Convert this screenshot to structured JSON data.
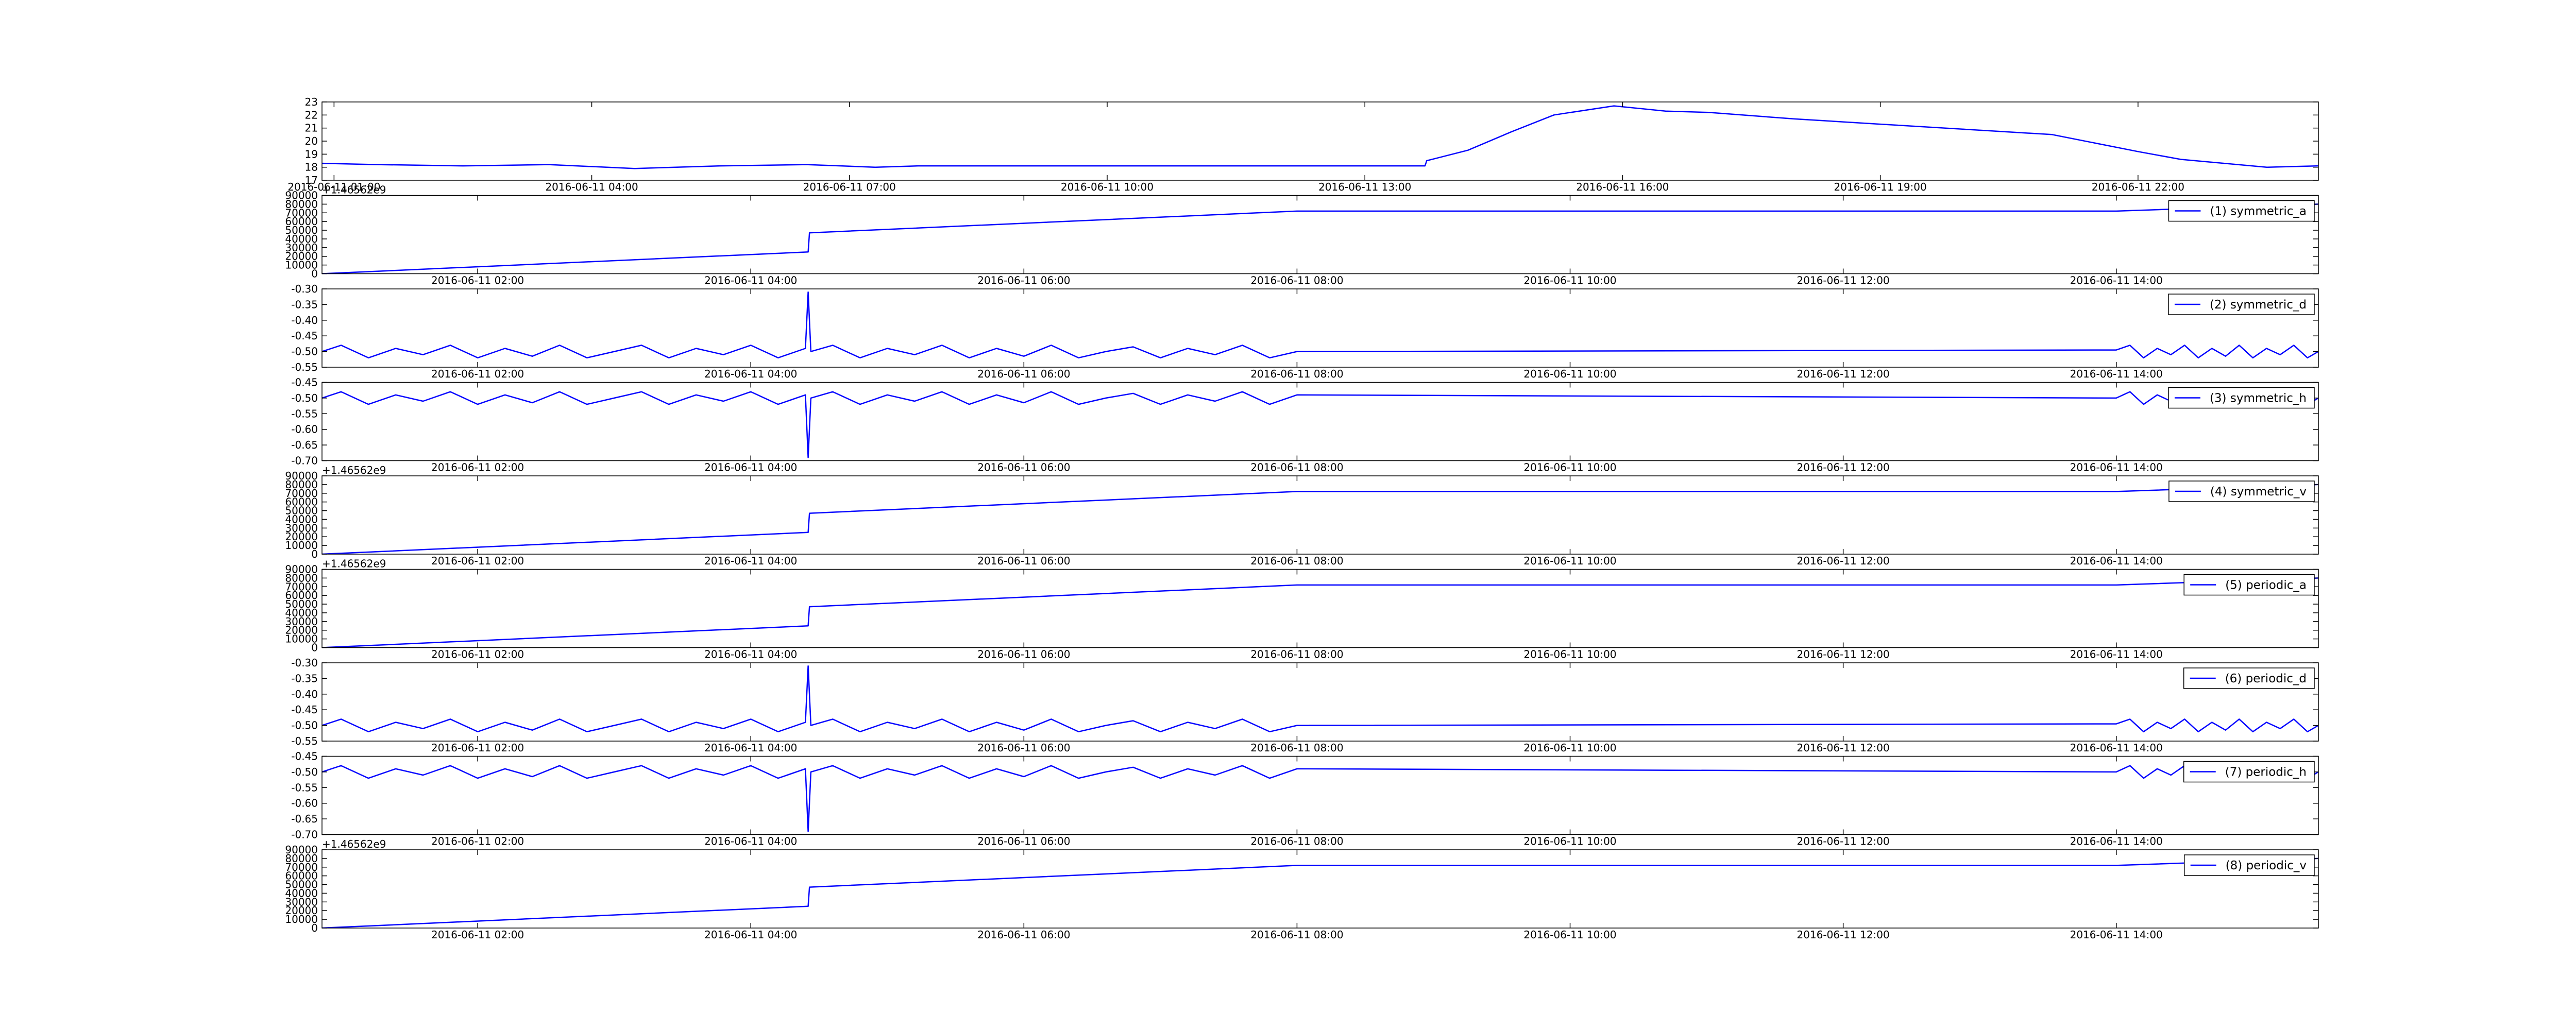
{
  "chart_data": [
    {
      "type": "line",
      "x": [
        0.86,
        1.5,
        2.5,
        3.5,
        4.5,
        5.5,
        6.5,
        7.3,
        7.8,
        13.7,
        13.72,
        14.2,
        14.7,
        15.2,
        15.9,
        16.5,
        17.0,
        18.0,
        19.0,
        20.0,
        21.0,
        22.0,
        22.5,
        23.0,
        23.5,
        24.1
      ],
      "series": [
        {
          "color": "#0000ff",
          "values": [
            18.3,
            18.2,
            18.1,
            18.2,
            17.9,
            18.1,
            18.2,
            18.0,
            18.1,
            18.1,
            18.5,
            19.3,
            20.7,
            22.0,
            22.7,
            22.3,
            22.2,
            21.7,
            21.3,
            20.9,
            20.5,
            19.2,
            18.6,
            18.3,
            18.0,
            18.1
          ]
        }
      ],
      "xlim": [
        0.86,
        24.1
      ],
      "ylim": [
        17,
        23
      ],
      "yticks": [
        17,
        18,
        19,
        20,
        21,
        22,
        23
      ],
      "xticks": [
        {
          "value": 1,
          "label": "2016-06-11 01:00"
        },
        {
          "value": 4,
          "label": "2016-06-11 04:00"
        },
        {
          "value": 7,
          "label": "2016-06-11 07:00"
        },
        {
          "value": 10,
          "label": "2016-06-11 10:00"
        },
        {
          "value": 13,
          "label": "2016-06-11 13:00"
        },
        {
          "value": 16,
          "label": "2016-06-11 16:00"
        },
        {
          "value": 19,
          "label": "2016-06-11 19:00"
        },
        {
          "value": 22,
          "label": "2016-06-11 22:00"
        }
      ]
    },
    {
      "type": "line",
      "offset_text": "+1.46562e9",
      "legend": "upper right",
      "x": [
        0.86,
        4.42,
        4.43,
        8.0,
        14.0,
        15.48
      ],
      "series": [
        {
          "name": "(1) symmetric_a",
          "color": "#0000ff",
          "values": [
            0,
            25000,
            47000,
            72000,
            72000,
            80000
          ]
        }
      ],
      "xlim": [
        0.86,
        15.48
      ],
      "ylim": [
        0,
        90000
      ],
      "yticks": [
        0,
        10000,
        20000,
        30000,
        40000,
        50000,
        60000,
        70000,
        80000,
        90000
      ],
      "xticks": [
        {
          "value": 2,
          "label": "2016-06-11 02:00"
        },
        {
          "value": 4,
          "label": "2016-06-11 04:00"
        },
        {
          "value": 6,
          "label": "2016-06-11 06:00"
        },
        {
          "value": 8,
          "label": "2016-06-11 08:00"
        },
        {
          "value": 10,
          "label": "2016-06-11 10:00"
        },
        {
          "value": 12,
          "label": "2016-06-11 12:00"
        },
        {
          "value": 14,
          "label": "2016-06-11 14:00"
        }
      ]
    },
    {
      "type": "line",
      "legend": "upper right",
      "x": [
        0.86,
        1.0,
        1.2,
        1.4,
        1.6,
        1.8,
        2.0,
        2.2,
        2.4,
        2.6,
        2.8,
        3.0,
        3.2,
        3.4,
        3.6,
        3.8,
        4.0,
        4.2,
        4.4,
        4.42,
        4.44,
        4.6,
        4.8,
        5.0,
        5.2,
        5.4,
        5.6,
        5.8,
        6.0,
        6.2,
        6.4,
        6.6,
        6.8,
        7.0,
        7.2,
        7.4,
        7.6,
        7.8,
        8.0,
        14.0,
        14.1,
        14.2,
        14.3,
        14.4,
        14.5,
        14.6,
        14.7,
        14.8,
        14.9,
        15.0,
        15.1,
        15.2,
        15.3,
        15.4,
        15.48
      ],
      "series": [
        {
          "name": "(2) symmetric_d",
          "color": "#0000ff",
          "values": [
            -0.5,
            -0.48,
            -0.52,
            -0.49,
            -0.51,
            -0.48,
            -0.52,
            -0.49,
            -0.515,
            -0.48,
            -0.52,
            -0.5,
            -0.48,
            -0.52,
            -0.49,
            -0.51,
            -0.48,
            -0.52,
            -0.49,
            -0.31,
            -0.5,
            -0.48,
            -0.52,
            -0.49,
            -0.51,
            -0.48,
            -0.52,
            -0.49,
            -0.515,
            -0.48,
            -0.52,
            -0.5,
            -0.485,
            -0.52,
            -0.49,
            -0.51,
            -0.48,
            -0.52,
            -0.5,
            -0.495,
            -0.48,
            -0.52,
            -0.49,
            -0.51,
            -0.48,
            -0.52,
            -0.49,
            -0.515,
            -0.48,
            -0.52,
            -0.49,
            -0.51,
            -0.48,
            -0.52,
            -0.5
          ]
        }
      ],
      "xlim": [
        0.86,
        15.48
      ],
      "ylim": [
        -0.55,
        -0.3
      ],
      "yticks": [
        {
          "value": -0.55,
          "label": "-0.55"
        },
        {
          "value": -0.5,
          "label": "-0.50"
        },
        {
          "value": -0.45,
          "label": "-0.45"
        },
        {
          "value": -0.4,
          "label": "-0.40"
        },
        {
          "value": -0.35,
          "label": "-0.35"
        },
        {
          "value": -0.3,
          "label": "-0.30"
        }
      ],
      "xticks": [
        {
          "value": 2,
          "label": "2016-06-11 02:00"
        },
        {
          "value": 4,
          "label": "2016-06-11 04:00"
        },
        {
          "value": 6,
          "label": "2016-06-11 06:00"
        },
        {
          "value": 8,
          "label": "2016-06-11 08:00"
        },
        {
          "value": 10,
          "label": "2016-06-11 10:00"
        },
        {
          "value": 12,
          "label": "2016-06-11 12:00"
        },
        {
          "value": 14,
          "label": "2016-06-11 14:00"
        }
      ]
    },
    {
      "type": "line",
      "legend": "upper right",
      "x": [
        0.86,
        1.0,
        1.2,
        1.4,
        1.6,
        1.8,
        2.0,
        2.2,
        2.4,
        2.6,
        2.8,
        3.0,
        3.2,
        3.4,
        3.6,
        3.8,
        4.0,
        4.2,
        4.4,
        4.42,
        4.44,
        4.6,
        4.8,
        5.0,
        5.2,
        5.4,
        5.6,
        5.8,
        6.0,
        6.2,
        6.4,
        6.6,
        6.8,
        7.0,
        7.2,
        7.4,
        7.6,
        7.8,
        8.0,
        14.0,
        14.1,
        14.2,
        14.3,
        14.4,
        14.5,
        14.6,
        14.7,
        14.8,
        14.9,
        15.0,
        15.1,
        15.2,
        15.3,
        15.4,
        15.48
      ],
      "series": [
        {
          "name": "(3) symmetric_h",
          "color": "#0000ff",
          "values": [
            -0.5,
            -0.48,
            -0.52,
            -0.49,
            -0.51,
            -0.48,
            -0.52,
            -0.49,
            -0.515,
            -0.48,
            -0.52,
            -0.5,
            -0.48,
            -0.52,
            -0.49,
            -0.51,
            -0.48,
            -0.52,
            -0.49,
            -0.69,
            -0.5,
            -0.48,
            -0.52,
            -0.49,
            -0.51,
            -0.48,
            -0.52,
            -0.49,
            -0.515,
            -0.48,
            -0.52,
            -0.5,
            -0.485,
            -0.52,
            -0.49,
            -0.51,
            -0.48,
            -0.52,
            -0.49,
            -0.5,
            -0.48,
            -0.52,
            -0.49,
            -0.51,
            -0.48,
            -0.52,
            -0.49,
            -0.515,
            -0.48,
            -0.52,
            -0.49,
            -0.51,
            -0.48,
            -0.52,
            -0.5
          ]
        }
      ],
      "xlim": [
        0.86,
        15.48
      ],
      "ylim": [
        -0.7,
        -0.45
      ],
      "yticks": [
        {
          "value": -0.7,
          "label": "-0.70"
        },
        {
          "value": -0.65,
          "label": "-0.65"
        },
        {
          "value": -0.6,
          "label": "-0.60"
        },
        {
          "value": -0.55,
          "label": "-0.55"
        },
        {
          "value": -0.5,
          "label": "-0.50"
        },
        {
          "value": -0.45,
          "label": "-0.45"
        }
      ],
      "xticks": [
        {
          "value": 2,
          "label": "2016-06-11 02:00"
        },
        {
          "value": 4,
          "label": "2016-06-11 04:00"
        },
        {
          "value": 6,
          "label": "2016-06-11 06:00"
        },
        {
          "value": 8,
          "label": "2016-06-11 08:00"
        },
        {
          "value": 10,
          "label": "2016-06-11 10:00"
        },
        {
          "value": 12,
          "label": "2016-06-11 12:00"
        },
        {
          "value": 14,
          "label": "2016-06-11 14:00"
        }
      ]
    },
    {
      "type": "line",
      "offset_text": "+1.46562e9",
      "legend": "upper right",
      "x": [
        0.86,
        4.42,
        4.43,
        8.0,
        14.0,
        15.48
      ],
      "series": [
        {
          "name": "(4) symmetric_v",
          "color": "#0000ff",
          "values": [
            0,
            25000,
            47000,
            72000,
            72000,
            80000
          ]
        }
      ],
      "xlim": [
        0.86,
        15.48
      ],
      "ylim": [
        0,
        90000
      ],
      "yticks": [
        0,
        10000,
        20000,
        30000,
        40000,
        50000,
        60000,
        70000,
        80000,
        90000
      ],
      "xticks": [
        {
          "value": 2,
          "label": "2016-06-11 02:00"
        },
        {
          "value": 4,
          "label": "2016-06-11 04:00"
        },
        {
          "value": 6,
          "label": "2016-06-11 06:00"
        },
        {
          "value": 8,
          "label": "2016-06-11 08:00"
        },
        {
          "value": 10,
          "label": "2016-06-11 10:00"
        },
        {
          "value": 12,
          "label": "2016-06-11 12:00"
        },
        {
          "value": 14,
          "label": "2016-06-11 14:00"
        }
      ]
    },
    {
      "type": "line",
      "offset_text": "+1.46562e9",
      "legend": "upper right",
      "x": [
        0.86,
        4.42,
        4.43,
        8.0,
        14.0,
        15.48
      ],
      "series": [
        {
          "name": "(5) periodic_a",
          "color": "#0000ff",
          "values": [
            0,
            25000,
            47000,
            72000,
            72000,
            80000
          ]
        }
      ],
      "xlim": [
        0.86,
        15.48
      ],
      "ylim": [
        0,
        90000
      ],
      "yticks": [
        0,
        10000,
        20000,
        30000,
        40000,
        50000,
        60000,
        70000,
        80000,
        90000
      ],
      "xticks": [
        {
          "value": 2,
          "label": "2016-06-11 02:00"
        },
        {
          "value": 4,
          "label": "2016-06-11 04:00"
        },
        {
          "value": 6,
          "label": "2016-06-11 06:00"
        },
        {
          "value": 8,
          "label": "2016-06-11 08:00"
        },
        {
          "value": 10,
          "label": "2016-06-11 10:00"
        },
        {
          "value": 12,
          "label": "2016-06-11 12:00"
        },
        {
          "value": 14,
          "label": "2016-06-11 14:00"
        }
      ]
    },
    {
      "type": "line",
      "legend": "upper right",
      "x": [
        0.86,
        1.0,
        1.2,
        1.4,
        1.6,
        1.8,
        2.0,
        2.2,
        2.4,
        2.6,
        2.8,
        3.0,
        3.2,
        3.4,
        3.6,
        3.8,
        4.0,
        4.2,
        4.4,
        4.42,
        4.44,
        4.6,
        4.8,
        5.0,
        5.2,
        5.4,
        5.6,
        5.8,
        6.0,
        6.2,
        6.4,
        6.6,
        6.8,
        7.0,
        7.2,
        7.4,
        7.6,
        7.8,
        8.0,
        14.0,
        14.1,
        14.2,
        14.3,
        14.4,
        14.5,
        14.6,
        14.7,
        14.8,
        14.9,
        15.0,
        15.1,
        15.2,
        15.3,
        15.4,
        15.48
      ],
      "series": [
        {
          "name": "(6) periodic_d",
          "color": "#0000ff",
          "values": [
            -0.5,
            -0.48,
            -0.52,
            -0.49,
            -0.51,
            -0.48,
            -0.52,
            -0.49,
            -0.515,
            -0.48,
            -0.52,
            -0.5,
            -0.48,
            -0.52,
            -0.49,
            -0.51,
            -0.48,
            -0.52,
            -0.49,
            -0.31,
            -0.5,
            -0.48,
            -0.52,
            -0.49,
            -0.51,
            -0.48,
            -0.52,
            -0.49,
            -0.515,
            -0.48,
            -0.52,
            -0.5,
            -0.485,
            -0.52,
            -0.49,
            -0.51,
            -0.48,
            -0.52,
            -0.5,
            -0.495,
            -0.48,
            -0.52,
            -0.49,
            -0.51,
            -0.48,
            -0.52,
            -0.49,
            -0.515,
            -0.48,
            -0.52,
            -0.49,
            -0.51,
            -0.48,
            -0.52,
            -0.5
          ]
        }
      ],
      "xlim": [
        0.86,
        15.48
      ],
      "ylim": [
        -0.55,
        -0.3
      ],
      "yticks": [
        {
          "value": -0.55,
          "label": "-0.55"
        },
        {
          "value": -0.5,
          "label": "-0.50"
        },
        {
          "value": -0.45,
          "label": "-0.45"
        },
        {
          "value": -0.4,
          "label": "-0.40"
        },
        {
          "value": -0.35,
          "label": "-0.35"
        },
        {
          "value": -0.3,
          "label": "-0.30"
        }
      ],
      "xticks": [
        {
          "value": 2,
          "label": "2016-06-11 02:00"
        },
        {
          "value": 4,
          "label": "2016-06-11 04:00"
        },
        {
          "value": 6,
          "label": "2016-06-11 06:00"
        },
        {
          "value": 8,
          "label": "2016-06-11 08:00"
        },
        {
          "value": 10,
          "label": "2016-06-11 10:00"
        },
        {
          "value": 12,
          "label": "2016-06-11 12:00"
        },
        {
          "value": 14,
          "label": "2016-06-11 14:00"
        }
      ]
    },
    {
      "type": "line",
      "legend": "upper right",
      "x": [
        0.86,
        1.0,
        1.2,
        1.4,
        1.6,
        1.8,
        2.0,
        2.2,
        2.4,
        2.6,
        2.8,
        3.0,
        3.2,
        3.4,
        3.6,
        3.8,
        4.0,
        4.2,
        4.4,
        4.42,
        4.44,
        4.6,
        4.8,
        5.0,
        5.2,
        5.4,
        5.6,
        5.8,
        6.0,
        6.2,
        6.4,
        6.6,
        6.8,
        7.0,
        7.2,
        7.4,
        7.6,
        7.8,
        8.0,
        14.0,
        14.1,
        14.2,
        14.3,
        14.4,
        14.5,
        14.6,
        14.7,
        14.8,
        14.9,
        15.0,
        15.1,
        15.2,
        15.3,
        15.4,
        15.48
      ],
      "series": [
        {
          "name": "(7) periodic_h",
          "color": "#0000ff",
          "values": [
            -0.5,
            -0.48,
            -0.52,
            -0.49,
            -0.51,
            -0.48,
            -0.52,
            -0.49,
            -0.515,
            -0.48,
            -0.52,
            -0.5,
            -0.48,
            -0.52,
            -0.49,
            -0.51,
            -0.48,
            -0.52,
            -0.49,
            -0.69,
            -0.5,
            -0.48,
            -0.52,
            -0.49,
            -0.51,
            -0.48,
            -0.52,
            -0.49,
            -0.515,
            -0.48,
            -0.52,
            -0.5,
            -0.485,
            -0.52,
            -0.49,
            -0.51,
            -0.48,
            -0.52,
            -0.49,
            -0.5,
            -0.48,
            -0.52,
            -0.49,
            -0.51,
            -0.48,
            -0.52,
            -0.49,
            -0.515,
            -0.48,
            -0.52,
            -0.49,
            -0.51,
            -0.48,
            -0.52,
            -0.5
          ]
        }
      ],
      "xlim": [
        0.86,
        15.48
      ],
      "ylim": [
        -0.7,
        -0.45
      ],
      "yticks": [
        {
          "value": -0.7,
          "label": "-0.70"
        },
        {
          "value": -0.65,
          "label": "-0.65"
        },
        {
          "value": -0.6,
          "label": "-0.60"
        },
        {
          "value": -0.55,
          "label": "-0.55"
        },
        {
          "value": -0.5,
          "label": "-0.50"
        },
        {
          "value": -0.45,
          "label": "-0.45"
        }
      ],
      "xticks": [
        {
          "value": 2,
          "label": "2016-06-11 02:00"
        },
        {
          "value": 4,
          "label": "2016-06-11 04:00"
        },
        {
          "value": 6,
          "label": "2016-06-11 06:00"
        },
        {
          "value": 8,
          "label": "2016-06-11 08:00"
        },
        {
          "value": 10,
          "label": "2016-06-11 10:00"
        },
        {
          "value": 12,
          "label": "2016-06-11 12:00"
        },
        {
          "value": 14,
          "label": "2016-06-11 14:00"
        }
      ]
    },
    {
      "type": "line",
      "offset_text": "+1.46562e9",
      "legend": "upper right",
      "x": [
        0.86,
        4.42,
        4.43,
        8.0,
        14.0,
        15.48
      ],
      "series": [
        {
          "name": "(8) periodic_v",
          "color": "#0000ff",
          "values": [
            0,
            25000,
            47000,
            72000,
            72000,
            80000
          ]
        }
      ],
      "xlim": [
        0.86,
        15.48
      ],
      "ylim": [
        0,
        90000
      ],
      "yticks": [
        0,
        10000,
        20000,
        30000,
        40000,
        50000,
        60000,
        70000,
        80000,
        90000
      ],
      "xticks": [
        {
          "value": 2,
          "label": "2016-06-11 02:00"
        },
        {
          "value": 4,
          "label": "2016-06-11 04:00"
        },
        {
          "value": 6,
          "label": "2016-06-11 06:00"
        },
        {
          "value": 8,
          "label": "2016-06-11 08:00"
        },
        {
          "value": 10,
          "label": "2016-06-11 10:00"
        },
        {
          "value": 12,
          "label": "2016-06-11 12:00"
        },
        {
          "value": 14,
          "label": "2016-06-11 14:00"
        }
      ]
    }
  ]
}
